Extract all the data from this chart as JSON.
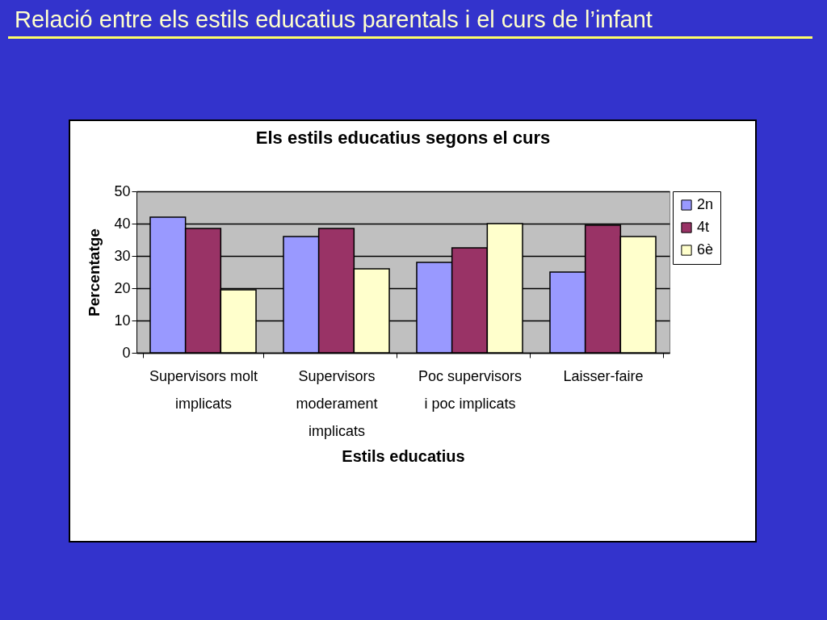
{
  "chart_data": {
    "type": "bar",
    "title": "Relació entre els estils educatius parentals i el curs de l’infant",
    "subtitle": "Els estils educatius segons el curs",
    "xlabel": "Estils educatius",
    "ylabel": "Percentatge",
    "categories": [
      "Supervisors molt implicats",
      "Supervisors moderament implicats",
      "Poc supervisors i poc implicats",
      "Laisser-faire"
    ],
    "series": [
      {
        "name": "2n",
        "color": "#9999ff",
        "values": [
          42,
          36,
          28,
          25
        ]
      },
      {
        "name": "4t",
        "color": "#993366",
        "values": [
          38.5,
          38.5,
          32.5,
          39.5
        ]
      },
      {
        "name": "6è",
        "color": "#ffffcc",
        "values": [
          19.5,
          26,
          40,
          36
        ]
      }
    ],
    "ylim": [
      0,
      50
    ],
    "yticks": [
      0,
      10,
      20,
      30,
      40,
      50
    ],
    "grid": "y",
    "legend": "right"
  }
}
